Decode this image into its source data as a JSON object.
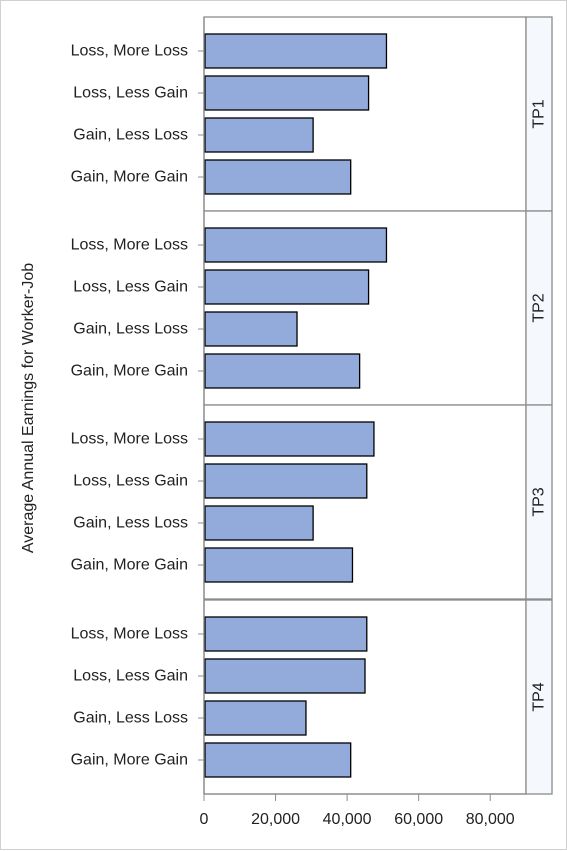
{
  "chart_data": {
    "type": "bar",
    "orientation": "horizontal",
    "ylabel": "Average Annual Earnings for Worker-Job",
    "xlabel": "",
    "categories": [
      "Loss, More Loss",
      "Loss, Less Gain",
      "Gain, Less Loss",
      "Gain, More Gain"
    ],
    "xlim": [
      0,
      90000
    ],
    "xticks": [
      0,
      20000,
      40000,
      60000,
      80000
    ],
    "xtick_labels": [
      "0",
      "20,000",
      "40,000",
      "60,000",
      "80,000"
    ],
    "panels": [
      {
        "label": "TP1",
        "values": [
          51000,
          46000,
          30500,
          41000
        ]
      },
      {
        "label": "TP2",
        "values": [
          51000,
          46000,
          26000,
          43500
        ]
      },
      {
        "label": "TP3",
        "values": [
          47500,
          45500,
          30500,
          41500
        ]
      },
      {
        "label": "TP4",
        "values": [
          45500,
          45000,
          28500,
          41000
        ]
      }
    ],
    "bar_color": "#92abdb",
    "bar_edge_color": "#000000",
    "grid": false,
    "legend": "none"
  }
}
